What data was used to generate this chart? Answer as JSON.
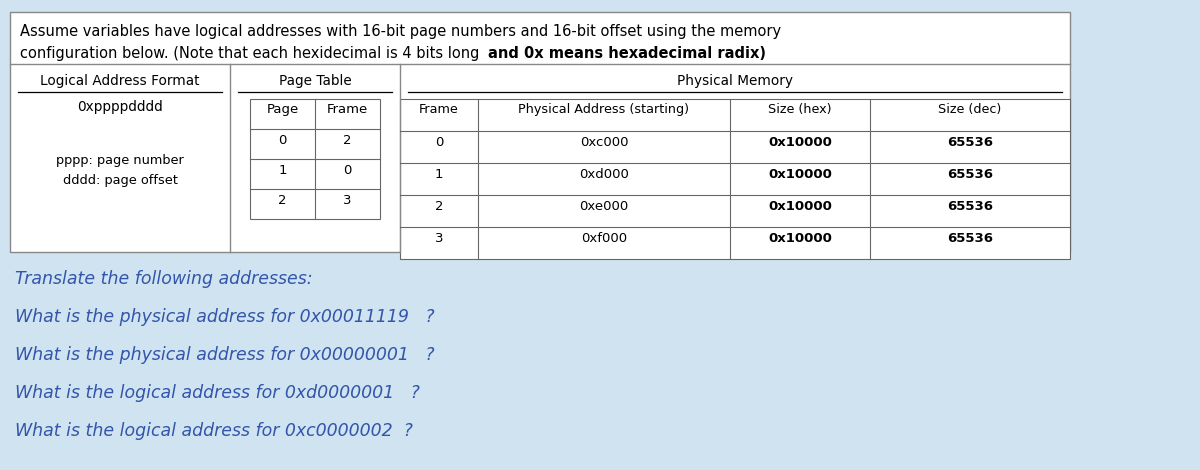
{
  "bg_color": "#cfe4f0",
  "table_bg": "#ffffff",
  "header_text_color": "#000000",
  "body_text_color": "#3355aa",
  "title_normal": "Assume variables have logical addresses with 16-bit page numbers and 16-bit offset using the memory\nconfiguration below. (Note that each hexidecimal is 4 bits long ",
  "title_bold": "and 0x means hexadecimal radix)",
  "logical_format_header": "Logical Address Format",
  "logical_format_sub": "0xppppdddd",
  "logical_format_desc1": "pppp: page number",
  "logical_format_desc2": "dddd: page offset",
  "page_table_header": "Page Table",
  "page_table_col1": "Page",
  "page_table_col2": "Frame",
  "page_table_rows": [
    [
      0,
      2
    ],
    [
      1,
      0
    ],
    [
      2,
      3
    ]
  ],
  "phys_mem_header": "Physical Memory",
  "phys_mem_col1": "Frame",
  "phys_mem_col2": "Physical Address (starting)",
  "phys_mem_col3": "Size (hex)",
  "phys_mem_col4": "Size (dec)",
  "phys_mem_rows": [
    [
      0,
      "0xc000",
      "0x10000",
      "65536"
    ],
    [
      1,
      "0xd000",
      "0x10000",
      "65536"
    ],
    [
      2,
      "0xe000",
      "0x10000",
      "65536"
    ],
    [
      3,
      "0xf000",
      "0x10000",
      "65536"
    ]
  ],
  "questions": [
    "Translate the following addresses:",
    "What is the physical address for 0x00011119   ?",
    "What is the physical address for 0x00000001   ?",
    "What is the logical address for 0xd0000001   ?",
    "What is the logical address for 0xc0000002  ?"
  ]
}
